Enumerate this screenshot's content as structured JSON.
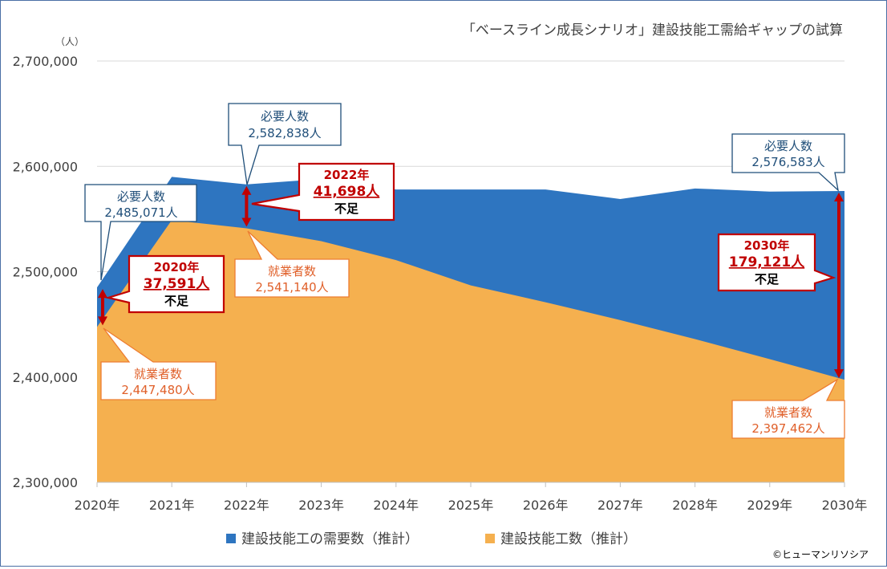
{
  "chart_data": {
    "type": "area",
    "title": "「ベースライン成長シナリオ」建設技能工需給ギャップの試算",
    "ylabel": "（人）",
    "ylim": [
      2300000,
      2700000
    ],
    "y_ticks": [
      "2,300,000",
      "2,400,000",
      "2,500,000",
      "2,600,000",
      "2,700,000"
    ],
    "y_tick_values": [
      2300000,
      2400000,
      2500000,
      2600000,
      2700000
    ],
    "categories": [
      "2020年",
      "2021年",
      "2022年",
      "2023年",
      "2024年",
      "2025年",
      "2026年",
      "2027年",
      "2028年",
      "2029年",
      "2030年"
    ],
    "series": [
      {
        "name": "建設技能工の需要数（推計）",
        "color": "#2e75c0",
        "values": [
          2485071,
          2590000,
          2582838,
          2588000,
          2578000,
          2578000,
          2578000,
          2569000,
          2579000,
          2576000,
          2576583
        ]
      },
      {
        "name": "建設技能工数（推計）",
        "color": "#f5b04f",
        "values": [
          2447480,
          2549000,
          2541140,
          2529000,
          2511000,
          2487000,
          2471000,
          2454000,
          2436000,
          2417000,
          2397462
        ]
      }
    ],
    "annotations": {
      "demand_2020": {
        "label": "必要人数",
        "value": "2,485,071人"
      },
      "demand_2022": {
        "label": "必要人数",
        "value": "2,582,838人"
      },
      "demand_2030": {
        "label": "必要人数",
        "value": "2,576,583人"
      },
      "supply_2020": {
        "label": "就業者数",
        "value": "2,447,480人"
      },
      "supply_2022": {
        "label": "就業者数",
        "value": "2,541,140人"
      },
      "supply_2030": {
        "label": "就業者数",
        "value": "2,397,462人"
      },
      "gap_2020": {
        "year": "2020年",
        "value": "37,591人",
        "suffix": "不足"
      },
      "gap_2022": {
        "year": "2022年",
        "value": "41,698人",
        "suffix": "不足"
      },
      "gap_2030": {
        "year": "2030年",
        "value": "179,121人",
        "suffix": "不足"
      }
    }
  },
  "copyright": "©ヒューマンリソシア",
  "colors": {
    "demand": "#2e75c0",
    "supply": "#f5b04f",
    "gap": "#c00000",
    "demand_text": "#1f4e79",
    "supply_text": "#e0602a"
  }
}
